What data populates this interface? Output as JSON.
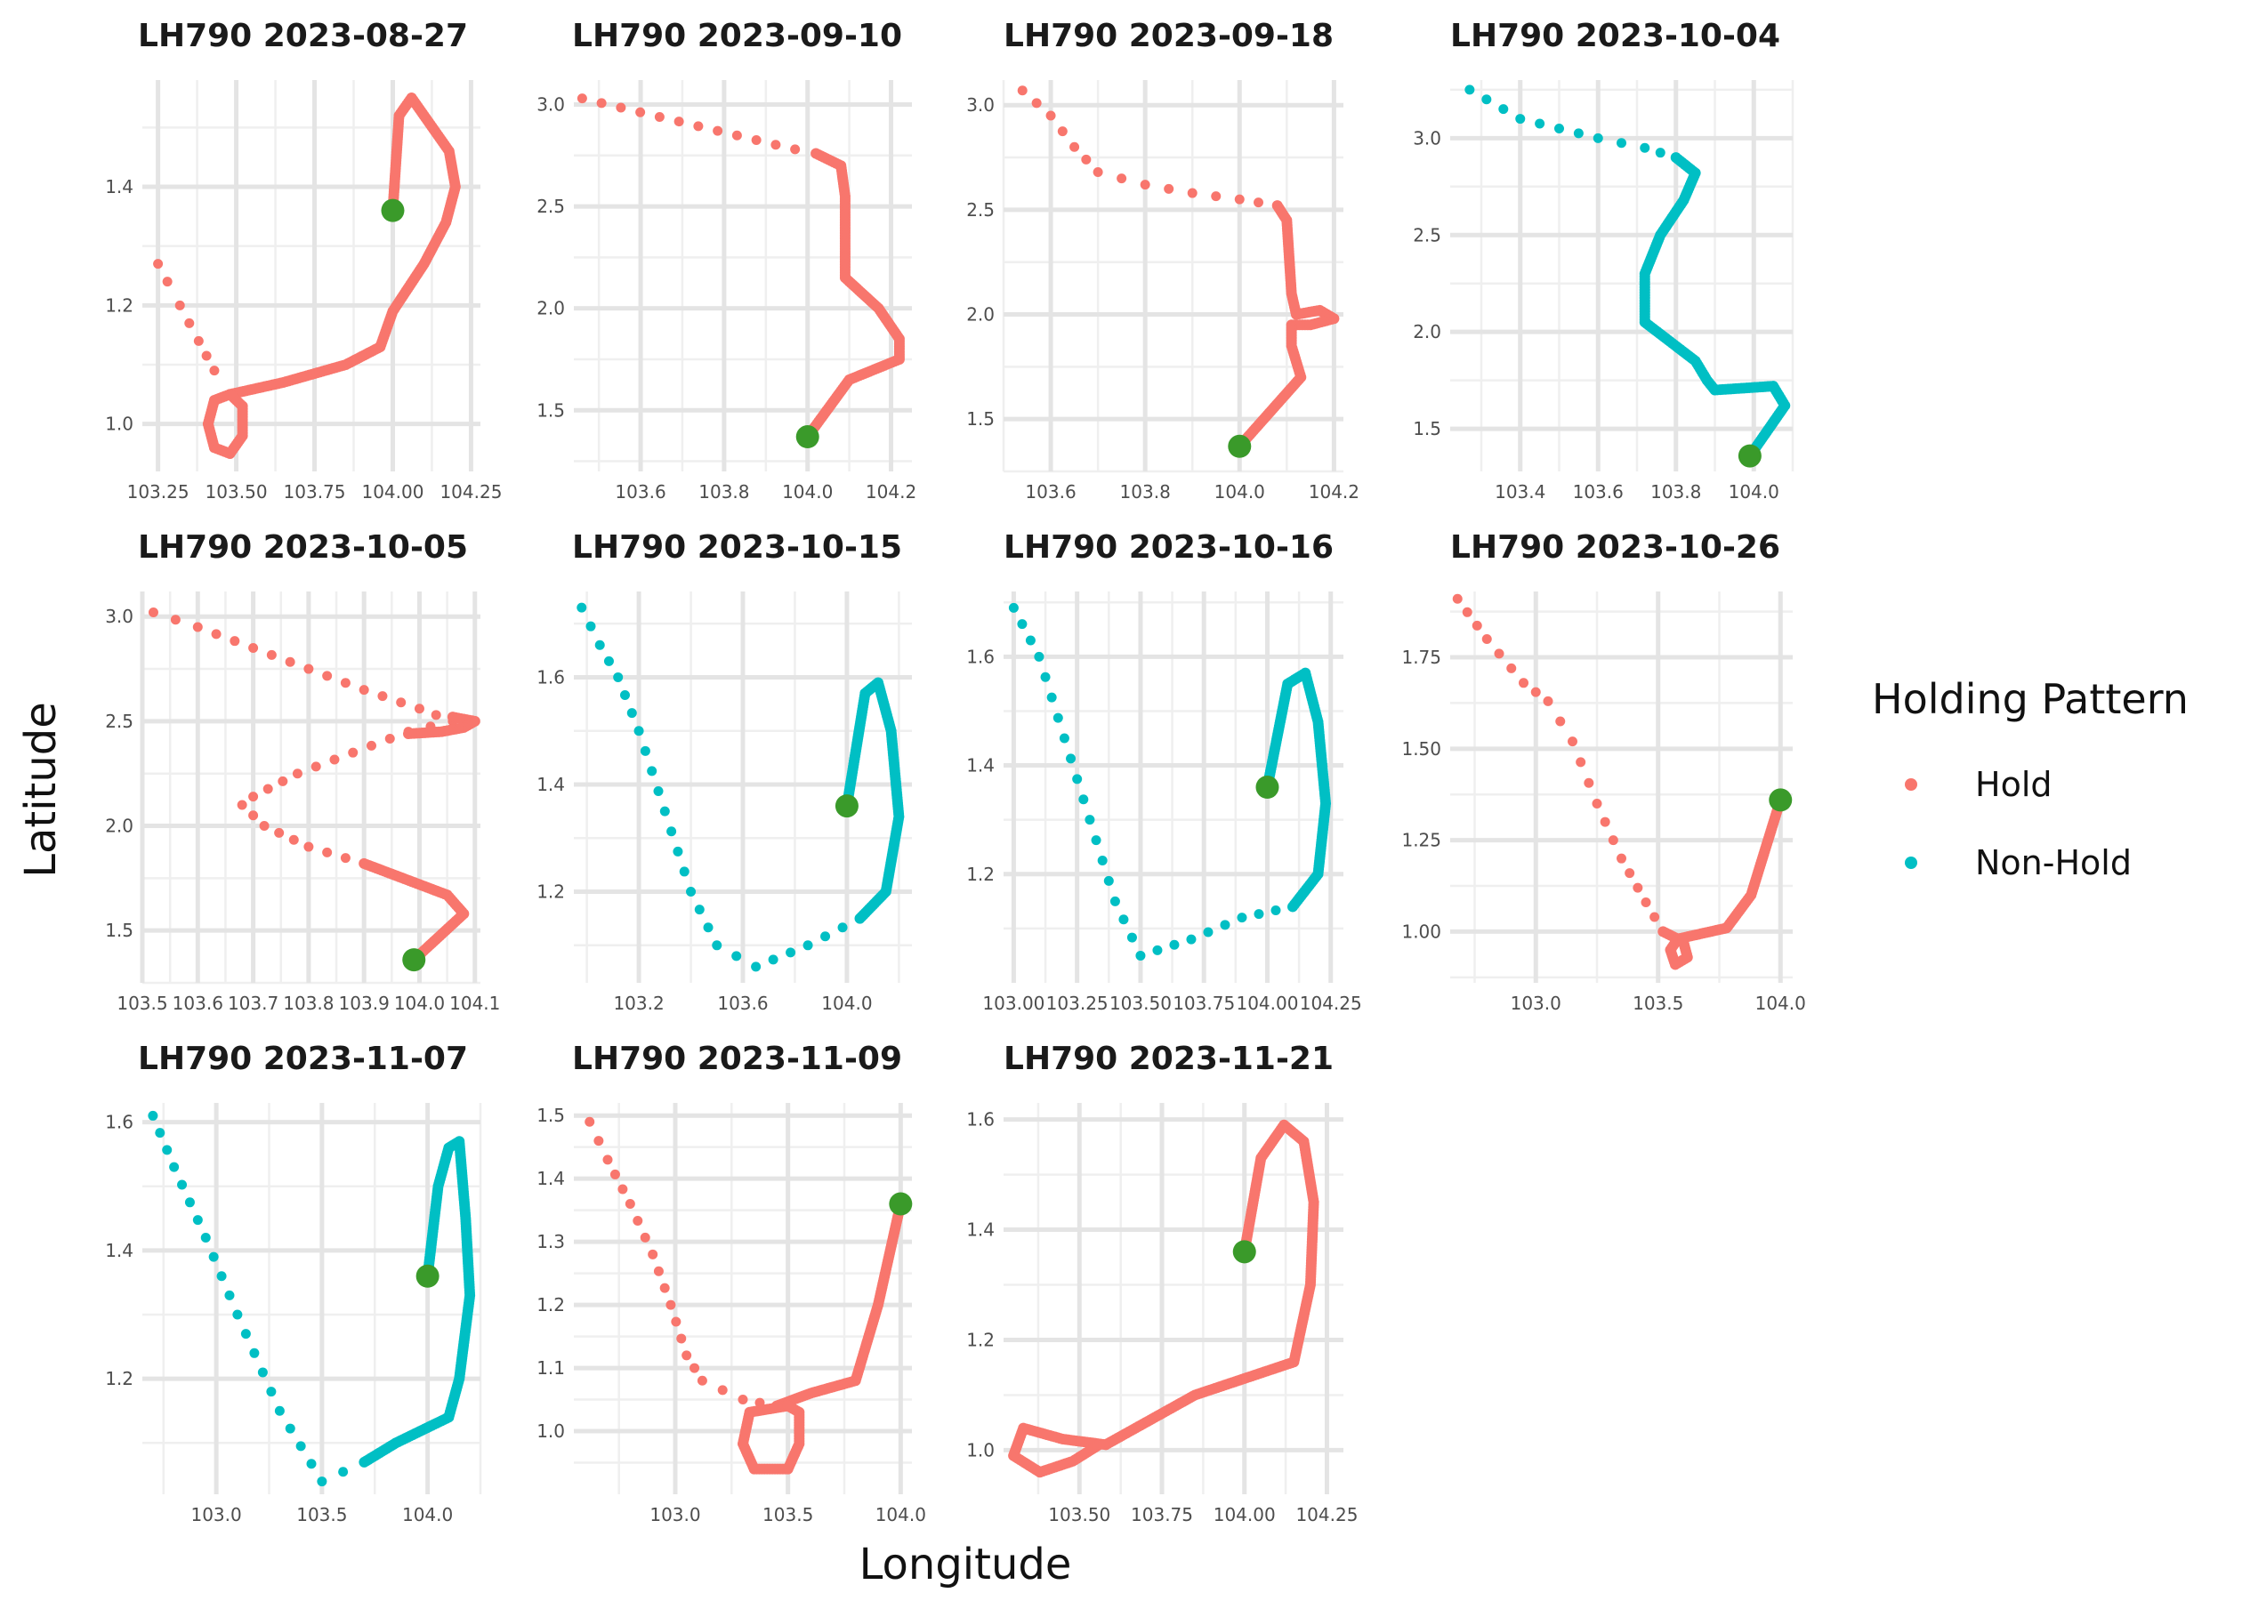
{
  "figure": {
    "xlabel": "Longitude",
    "ylabel": "Latitude",
    "legend": {
      "title": "Holding Pattern",
      "entries": [
        {
          "label": "Hold",
          "color": "#F8766D"
        },
        {
          "label": "Non-Hold",
          "color": "#00BFC4"
        }
      ],
      "position": "right"
    },
    "endpoint_color": "#3A9A2A"
  },
  "chart_data": [
    {
      "type": "scatter",
      "title": "LH790 2023-08-27",
      "pattern": "Hold",
      "xlim": [
        103.2,
        104.28
      ],
      "ylim": [
        0.92,
        1.58
      ],
      "xticks": [
        103.25,
        103.5,
        103.75,
        104.0,
        104.25
      ],
      "xtick_labels": [
        "103.25",
        "103.50",
        "103.75",
        "104.00",
        "104.25"
      ],
      "yticks": [
        1.0,
        1.2,
        1.4
      ],
      "ytick_labels": [
        "1.0",
        "1.2",
        "1.4"
      ],
      "path_sparse": [
        [
          103.25,
          1.27
        ],
        [
          103.28,
          1.24
        ],
        [
          103.32,
          1.2
        ],
        [
          103.38,
          1.14
        ],
        [
          103.43,
          1.09
        ],
        [
          103.48,
          1.05
        ]
      ],
      "path_dense": [
        [
          103.48,
          1.05
        ],
        [
          103.65,
          1.07
        ],
        [
          103.85,
          1.1
        ],
        [
          103.96,
          1.13
        ],
        [
          104.0,
          1.19
        ],
        [
          104.1,
          1.27
        ],
        [
          104.17,
          1.34
        ],
        [
          104.2,
          1.4
        ],
        [
          104.18,
          1.46
        ],
        [
          104.06,
          1.55
        ],
        [
          104.02,
          1.52
        ],
        [
          104.0,
          1.36
        ]
      ],
      "loop": [
        [
          103.48,
          1.05
        ],
        [
          103.43,
          1.04
        ],
        [
          103.41,
          1.0
        ],
        [
          103.43,
          0.96
        ],
        [
          103.48,
          0.95
        ],
        [
          103.52,
          0.98
        ],
        [
          103.52,
          1.03
        ],
        [
          103.48,
          1.05
        ]
      ],
      "end": [
        104.0,
        1.36
      ]
    },
    {
      "type": "scatter",
      "title": "LH790 2023-09-10",
      "pattern": "Hold",
      "xlim": [
        103.44,
        104.25
      ],
      "ylim": [
        1.2,
        3.12
      ],
      "xticks": [
        103.6,
        103.8,
        104.0,
        104.2
      ],
      "xtick_labels": [
        "103.6",
        "103.8",
        "104.0",
        "104.2"
      ],
      "yticks": [
        1.5,
        2.0,
        2.5,
        3.0
      ],
      "ytick_labels": [
        "1.5",
        "2.0",
        "2.5",
        "3.0"
      ],
      "path_sparse": [
        [
          103.46,
          3.03
        ],
        [
          103.97,
          2.78
        ],
        [
          104.02,
          2.76
        ]
      ],
      "path_dense": [
        [
          104.02,
          2.76
        ],
        [
          104.08,
          2.7
        ],
        [
          104.09,
          2.55
        ],
        [
          104.09,
          2.15
        ],
        [
          104.17,
          2.0
        ],
        [
          104.22,
          1.85
        ],
        [
          104.22,
          1.75
        ],
        [
          104.1,
          1.65
        ],
        [
          104.0,
          1.37
        ]
      ],
      "loop": [],
      "end": [
        104.0,
        1.37
      ]
    },
    {
      "type": "scatter",
      "title": "LH790 2023-09-18",
      "pattern": "Hold",
      "xlim": [
        103.5,
        104.22
      ],
      "ylim": [
        1.25,
        3.12
      ],
      "xticks": [
        103.6,
        103.8,
        104.0,
        104.2
      ],
      "xtick_labels": [
        "103.6",
        "103.8",
        "104.0",
        "104.2"
      ],
      "yticks": [
        1.5,
        2.0,
        2.5,
        3.0
      ],
      "ytick_labels": [
        "1.5",
        "2.0",
        "2.5",
        "3.0"
      ],
      "path_sparse": [
        [
          103.54,
          3.07
        ],
        [
          103.6,
          2.95
        ],
        [
          103.65,
          2.8
        ],
        [
          103.7,
          2.68
        ],
        [
          103.8,
          2.62
        ],
        [
          103.9,
          2.58
        ],
        [
          104.0,
          2.55
        ],
        [
          104.08,
          2.52
        ]
      ],
      "path_dense": [
        [
          104.08,
          2.52
        ],
        [
          104.1,
          2.45
        ],
        [
          104.11,
          2.1
        ],
        [
          104.12,
          2.0
        ],
        [
          104.17,
          2.02
        ],
        [
          104.2,
          1.98
        ],
        [
          104.15,
          1.95
        ],
        [
          104.11,
          1.95
        ],
        [
          104.11,
          1.85
        ],
        [
          104.13,
          1.7
        ],
        [
          104.0,
          1.37
        ]
      ],
      "loop": [],
      "end": [
        104.0,
        1.37
      ]
    },
    {
      "type": "scatter",
      "title": "LH790 2023-10-04",
      "pattern": "Non-Hold",
      "xlim": [
        103.22,
        104.1
      ],
      "ylim": [
        1.28,
        3.3
      ],
      "xticks": [
        103.4,
        103.6,
        103.8,
        104.0
      ],
      "xtick_labels": [
        "103.4",
        "103.6",
        "103.8",
        "104.0"
      ],
      "yticks": [
        1.5,
        2.0,
        2.5,
        3.0
      ],
      "ytick_labels": [
        "1.5",
        "2.0",
        "2.5",
        "3.0"
      ],
      "path_sparse": [
        [
          103.27,
          3.25
        ],
        [
          103.4,
          3.1
        ],
        [
          103.5,
          3.05
        ],
        [
          103.6,
          3.0
        ],
        [
          103.72,
          2.95
        ],
        [
          103.8,
          2.9
        ]
      ],
      "path_dense": [
        [
          103.8,
          2.9
        ],
        [
          103.85,
          2.82
        ],
        [
          103.82,
          2.68
        ],
        [
          103.76,
          2.5
        ],
        [
          103.72,
          2.3
        ],
        [
          103.72,
          2.05
        ],
        [
          103.85,
          1.85
        ],
        [
          103.88,
          1.75
        ],
        [
          103.9,
          1.7
        ],
        [
          104.05,
          1.72
        ],
        [
          104.08,
          1.62
        ],
        [
          103.99,
          1.36
        ]
      ],
      "loop": [],
      "end": [
        103.99,
        1.36
      ]
    },
    {
      "type": "scatter",
      "title": "LH790 2023-10-05",
      "pattern": "Hold",
      "xlim": [
        103.5,
        104.11
      ],
      "ylim": [
        1.25,
        3.12
      ],
      "xticks": [
        103.5,
        103.6,
        103.7,
        103.8,
        103.9,
        104.0,
        104.1
      ],
      "xtick_labels": [
        "103.5",
        "103.6",
        "103.7",
        "103.8",
        "103.9",
        "104.0",
        "104.1"
      ],
      "yticks": [
        1.5,
        2.0,
        2.5,
        3.0
      ],
      "ytick_labels": [
        "1.5",
        "2.0",
        "2.5",
        "3.0"
      ],
      "path_sparse": [
        [
          103.52,
          3.02
        ],
        [
          103.6,
          2.95
        ],
        [
          103.7,
          2.85
        ],
        [
          103.8,
          2.75
        ],
        [
          103.9,
          2.65
        ],
        [
          104.0,
          2.56
        ],
        [
          104.06,
          2.5
        ],
        [
          103.98,
          2.45
        ],
        [
          103.88,
          2.35
        ],
        [
          103.78,
          2.25
        ],
        [
          103.7,
          2.14
        ],
        [
          103.68,
          2.1
        ],
        [
          103.72,
          2.0
        ],
        [
          103.8,
          1.9
        ],
        [
          103.9,
          1.82
        ]
      ],
      "path_dense": [
        [
          104.06,
          2.52
        ],
        [
          104.1,
          2.5
        ],
        [
          104.08,
          2.47
        ],
        [
          104.04,
          2.45
        ],
        [
          103.98,
          2.44
        ]
      ],
      "path_dense2": [
        [
          103.9,
          1.82
        ],
        [
          104.05,
          1.67
        ],
        [
          104.08,
          1.58
        ],
        [
          103.99,
          1.36
        ]
      ],
      "loop": [],
      "end": [
        103.99,
        1.36
      ]
    },
    {
      "type": "scatter",
      "title": "LH790 2023-10-15",
      "pattern": "Non-Hold",
      "xlim": [
        102.95,
        104.25
      ],
      "ylim": [
        1.03,
        1.76
      ],
      "xticks": [
        103.2,
        103.6,
        104.0
      ],
      "xtick_labels": [
        "103.2",
        "103.6",
        "104.0"
      ],
      "yticks": [
        1.2,
        1.4,
        1.6
      ],
      "ytick_labels": [
        "1.2",
        "1.4",
        "1.6"
      ],
      "path_sparse": [
        [
          102.98,
          1.73
        ],
        [
          103.05,
          1.66
        ],
        [
          103.12,
          1.6
        ],
        [
          103.2,
          1.5
        ],
        [
          103.3,
          1.35
        ],
        [
          103.4,
          1.2
        ],
        [
          103.5,
          1.1
        ],
        [
          103.65,
          1.06
        ],
        [
          103.85,
          1.1
        ],
        [
          104.05,
          1.15
        ]
      ],
      "path_dense": [
        [
          104.05,
          1.15
        ],
        [
          104.15,
          1.2
        ],
        [
          104.2,
          1.34
        ],
        [
          104.17,
          1.5
        ],
        [
          104.12,
          1.59
        ],
        [
          104.07,
          1.57
        ],
        [
          104.0,
          1.36
        ]
      ],
      "loop": [],
      "end": [
        104.0,
        1.36
      ]
    },
    {
      "type": "scatter",
      "title": "LH790 2023-10-16",
      "pattern": "Non-Hold",
      "xlim": [
        102.96,
        104.3
      ],
      "ylim": [
        1.0,
        1.72
      ],
      "xticks": [
        103.0,
        103.25,
        103.5,
        103.75,
        104.0,
        104.25
      ],
      "xtick_labels": [
        "103.00",
        "103.25",
        "103.50",
        "103.75",
        "104.00",
        "104.25"
      ],
      "yticks": [
        1.2,
        1.4,
        1.6
      ],
      "ytick_labels": [
        "1.2",
        "1.4",
        "1.6"
      ],
      "path_sparse": [
        [
          103.0,
          1.69
        ],
        [
          103.1,
          1.6
        ],
        [
          103.2,
          1.45
        ],
        [
          103.3,
          1.3
        ],
        [
          103.4,
          1.15
        ],
        [
          103.5,
          1.05
        ],
        [
          103.7,
          1.08
        ],
        [
          103.9,
          1.12
        ],
        [
          104.1,
          1.14
        ]
      ],
      "path_dense": [
        [
          104.1,
          1.14
        ],
        [
          104.2,
          1.2
        ],
        [
          104.23,
          1.33
        ],
        [
          104.2,
          1.48
        ],
        [
          104.15,
          1.57
        ],
        [
          104.08,
          1.55
        ],
        [
          104.0,
          1.36
        ]
      ],
      "loop": [],
      "end": [
        104.0,
        1.36
      ]
    },
    {
      "type": "scatter",
      "title": "LH790 2023-10-26",
      "pattern": "Hold",
      "xlim": [
        102.65,
        104.05
      ],
      "ylim": [
        0.86,
        1.93
      ],
      "xticks": [
        103.0,
        103.5,
        104.0
      ],
      "xtick_labels": [
        "103.0",
        "103.5",
        "104.0"
      ],
      "yticks": [
        1.0,
        1.25,
        1.5,
        1.75
      ],
      "ytick_labels": [
        "1.00",
        "1.25",
        "1.50",
        "1.75"
      ],
      "path_sparse": [
        [
          102.68,
          1.91
        ],
        [
          102.8,
          1.8
        ],
        [
          102.95,
          1.68
        ],
        [
          103.05,
          1.63
        ],
        [
          103.15,
          1.52
        ],
        [
          103.25,
          1.35
        ],
        [
          103.35,
          1.2
        ],
        [
          103.45,
          1.08
        ],
        [
          103.52,
          1.0
        ]
      ],
      "path_dense": [
        [
          103.52,
          1.0
        ],
        [
          103.58,
          0.98
        ],
        [
          103.78,
          1.01
        ],
        [
          103.88,
          1.1
        ],
        [
          104.0,
          1.36
        ]
      ],
      "loop": [
        [
          103.58,
          0.98
        ],
        [
          103.55,
          0.95
        ],
        [
          103.57,
          0.91
        ],
        [
          103.62,
          0.93
        ],
        [
          103.6,
          0.98
        ]
      ],
      "end": [
        104.0,
        1.36
      ]
    },
    {
      "type": "scatter",
      "title": "LH790 2023-11-07",
      "pattern": "Non-Hold",
      "xlim": [
        102.65,
        104.25
      ],
      "ylim": [
        1.02,
        1.63
      ],
      "xticks": [
        103.0,
        103.5,
        104.0
      ],
      "xtick_labels": [
        "103.0",
        "103.5",
        "104.0"
      ],
      "yticks": [
        1.2,
        1.4,
        1.6
      ],
      "ytick_labels": [
        "1.2",
        "1.4",
        "1.6"
      ],
      "path_sparse": [
        [
          102.7,
          1.61
        ],
        [
          102.8,
          1.53
        ],
        [
          102.95,
          1.42
        ],
        [
          103.1,
          1.3
        ],
        [
          103.3,
          1.15
        ],
        [
          103.5,
          1.04
        ],
        [
          103.7,
          1.07
        ]
      ],
      "path_dense": [
        [
          103.7,
          1.07
        ],
        [
          103.85,
          1.1
        ],
        [
          104.1,
          1.14
        ],
        [
          104.15,
          1.2
        ],
        [
          104.2,
          1.33
        ],
        [
          104.18,
          1.45
        ],
        [
          104.15,
          1.57
        ],
        [
          104.1,
          1.56
        ],
        [
          104.05,
          1.5
        ],
        [
          104.0,
          1.36
        ]
      ],
      "loop": [],
      "end": [
        104.0,
        1.36
      ]
    },
    {
      "type": "scatter",
      "title": "LH790 2023-11-09",
      "pattern": "Hold",
      "xlim": [
        102.55,
        104.05
      ],
      "ylim": [
        0.9,
        1.52
      ],
      "xticks": [
        103.0,
        103.5,
        104.0
      ],
      "xtick_labels": [
        "103.0",
        "103.5",
        "104.0"
      ],
      "yticks": [
        1.0,
        1.1,
        1.2,
        1.3,
        1.4,
        1.5
      ],
      "ytick_labels": [
        "1.0",
        "1.1",
        "1.2",
        "1.3",
        "1.4",
        "1.5"
      ],
      "path_sparse": [
        [
          102.62,
          1.49
        ],
        [
          102.7,
          1.43
        ],
        [
          102.8,
          1.36
        ],
        [
          102.9,
          1.28
        ],
        [
          102.98,
          1.2
        ],
        [
          103.05,
          1.12
        ],
        [
          103.12,
          1.08
        ],
        [
          103.3,
          1.05
        ],
        [
          103.45,
          1.04
        ]
      ],
      "path_dense": [
        [
          103.45,
          1.04
        ],
        [
          103.6,
          1.06
        ],
        [
          103.8,
          1.08
        ],
        [
          103.9,
          1.2
        ],
        [
          104.0,
          1.36
        ]
      ],
      "loop": [
        [
          103.5,
          1.04
        ],
        [
          103.33,
          1.03
        ],
        [
          103.3,
          0.98
        ],
        [
          103.35,
          0.94
        ],
        [
          103.5,
          0.94
        ],
        [
          103.55,
          0.98
        ],
        [
          103.55,
          1.03
        ],
        [
          103.5,
          1.04
        ]
      ],
      "end": [
        104.0,
        1.36
      ]
    },
    {
      "type": "scatter",
      "title": "LH790 2023-11-21",
      "pattern": "Hold",
      "xlim": [
        103.27,
        104.3
      ],
      "ylim": [
        0.92,
        1.63
      ],
      "xticks": [
        103.5,
        103.75,
        104.0,
        104.25
      ],
      "xtick_labels": [
        "103.50",
        "103.75",
        "104.00",
        "104.25"
      ],
      "yticks": [
        1.0,
        1.2,
        1.4,
        1.6
      ],
      "ytick_labels": [
        "1.0",
        "1.2",
        "1.4",
        "1.6"
      ],
      "path_sparse": [],
      "path_dense": [
        [
          103.58,
          1.01
        ],
        [
          103.7,
          1.05
        ],
        [
          103.85,
          1.1
        ],
        [
          104.0,
          1.13
        ],
        [
          104.15,
          1.16
        ],
        [
          104.2,
          1.3
        ],
        [
          104.21,
          1.45
        ],
        [
          104.18,
          1.56
        ],
        [
          104.12,
          1.59
        ],
        [
          104.05,
          1.53
        ],
        [
          104.0,
          1.36
        ]
      ],
      "loop": [
        [
          103.58,
          1.01
        ],
        [
          103.45,
          1.02
        ],
        [
          103.33,
          1.04
        ],
        [
          103.3,
          0.99
        ],
        [
          103.38,
          0.96
        ],
        [
          103.48,
          0.98
        ],
        [
          103.56,
          1.01
        ]
      ],
      "end": [
        104.0,
        1.36
      ]
    }
  ]
}
